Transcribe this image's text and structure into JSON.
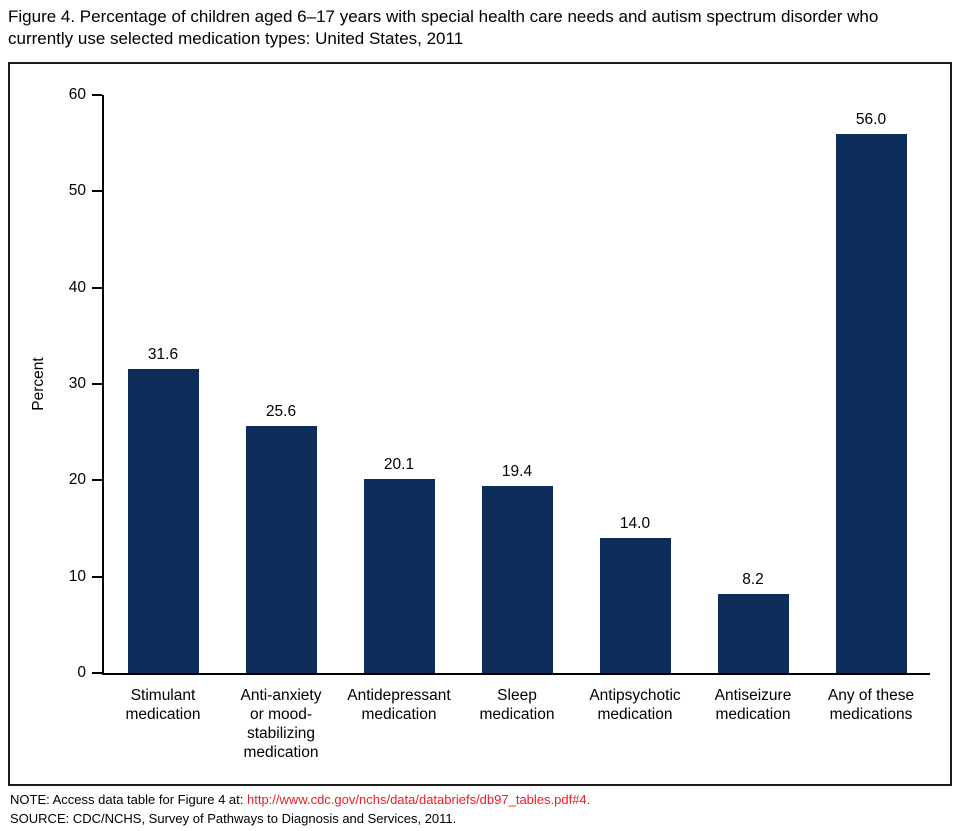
{
  "title": "Figure 4. Percentage of children aged 6–17 years with special health care needs and autism spectrum disorder who currently use selected medication types: United States, 2011",
  "chart_data": {
    "type": "bar",
    "title": "Figure 4. Percentage of children aged 6–17 years with special health care needs and autism spectrum disorder who currently use selected medication types: United States, 2011",
    "xlabel": "",
    "ylabel": "Percent",
    "ylim": [
      0,
      60
    ],
    "yticks": [
      0,
      10,
      20,
      30,
      40,
      50,
      60
    ],
    "grid": false,
    "legend": "none",
    "bar_color": "#0c2d5a",
    "categories": [
      "Stimulant medication",
      "Anti-anxiety or mood-stabilizing medication",
      "Antidepressant medication",
      "Sleep medication",
      "Antipsychotic medication",
      "Antiseizure medication",
      "Any of these medications"
    ],
    "category_lines": [
      [
        "Stimulant",
        "medication"
      ],
      [
        "Anti-anxiety",
        "or mood-",
        "stabilizing",
        "medication"
      ],
      [
        "Antidepressant",
        "medication"
      ],
      [
        "Sleep",
        "medication"
      ],
      [
        "Antipsychotic",
        "medication"
      ],
      [
        "Antiseizure",
        "medication"
      ],
      [
        "Any of these",
        "medications"
      ]
    ],
    "values": [
      31.6,
      25.6,
      20.1,
      19.4,
      14.0,
      8.2,
      56.0
    ],
    "value_labels": [
      "31.6",
      "25.6",
      "20.1",
      "19.4",
      "14.0",
      "8.2",
      "56.0"
    ]
  },
  "footer": {
    "note_prefix": "NOTE: Access data table for Figure 4 at: ",
    "note_link": "http://www.cdc.gov/nchs/data/databriefs/db97_tables.pdf#4.",
    "source": "SOURCE: CDC/NCHS, Survey of Pathways to Diagnosis and Services, 2011.",
    "link_color": "#ed1c24"
  }
}
